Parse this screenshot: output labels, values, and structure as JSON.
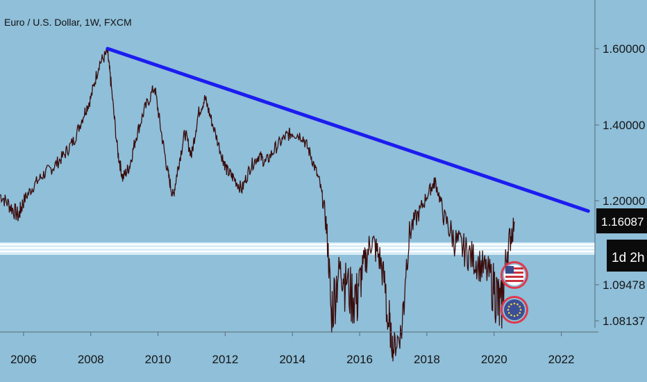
{
  "title": "Euro / U.S. Dollar, 1W, FXCM",
  "badges": {
    "price": "1.16087",
    "countdown": "1d 2h"
  },
  "icons": [
    "us-flag-icon",
    "eu-flag-icon"
  ],
  "colors": {
    "background": "#8fbfd9",
    "trendline": "#1c1cf0",
    "price_line": "#3a0d0d",
    "support_band": "#ffffff",
    "icon_ring": "#e0384a"
  },
  "chart_data": {
    "type": "line",
    "title": "Euro / U.S. Dollar, 1W, FXCM",
    "x_ticks": [
      "2006",
      "2008",
      "2010",
      "2012",
      "2014",
      "2016",
      "2018",
      "2020",
      "2022"
    ],
    "y_ticks": [
      "1.60000",
      "1.40000",
      "1.20000",
      "1.09478",
      "1.08137"
    ],
    "xlim": [
      2005.3,
      2023.0
    ],
    "ylim": [
      1.02,
      1.66
    ],
    "series": [
      {
        "x": [
          2005.3,
          2005.6,
          2005.85,
          2006.0,
          2006.3,
          2006.6,
          2006.9,
          2007.2,
          2007.5,
          2007.8,
          2008.0,
          2008.25,
          2008.5,
          2008.6,
          2008.8,
          2008.95,
          2009.15,
          2009.35,
          2009.6,
          2009.9,
          2010.1,
          2010.3,
          2010.45,
          2010.6,
          2010.8,
          2011.0,
          2011.2,
          2011.4,
          2011.6,
          2011.9,
          2012.05,
          2012.25,
          2012.5,
          2012.75,
          2013.0,
          2013.2,
          2013.5,
          2013.8,
          2014.0,
          2014.3,
          2014.55,
          2014.8,
          2015.0,
          2015.15,
          2015.4,
          2015.6,
          2015.9,
          2016.1,
          2016.35,
          2016.6,
          2016.85,
          2017.0,
          2017.25,
          2017.5,
          2017.8,
          2018.1,
          2018.25,
          2018.5,
          2018.8,
          2019.1,
          2019.4,
          2019.7,
          2020.0,
          2020.2,
          2020.4,
          2020.6
        ],
        "y": [
          1.215,
          1.19,
          1.17,
          1.2,
          1.24,
          1.27,
          1.29,
          1.32,
          1.36,
          1.43,
          1.47,
          1.56,
          1.59,
          1.51,
          1.33,
          1.26,
          1.29,
          1.37,
          1.44,
          1.5,
          1.38,
          1.27,
          1.21,
          1.29,
          1.38,
          1.32,
          1.43,
          1.47,
          1.41,
          1.32,
          1.28,
          1.26,
          1.23,
          1.29,
          1.32,
          1.3,
          1.34,
          1.37,
          1.38,
          1.37,
          1.32,
          1.25,
          1.16,
          1.08,
          1.11,
          1.1,
          1.09,
          1.11,
          1.14,
          1.12,
          1.08,
          1.05,
          1.07,
          1.15,
          1.18,
          1.23,
          1.25,
          1.17,
          1.14,
          1.13,
          1.12,
          1.11,
          1.1,
          1.08,
          1.13,
          1.16
        ]
      }
    ],
    "trendline": {
      "x": [
        2008.5,
        2022.8
      ],
      "y": [
        1.6,
        1.18
      ]
    },
    "support_band": {
      "y": [
        1.125,
        1.135
      ]
    },
    "grid": false
  }
}
